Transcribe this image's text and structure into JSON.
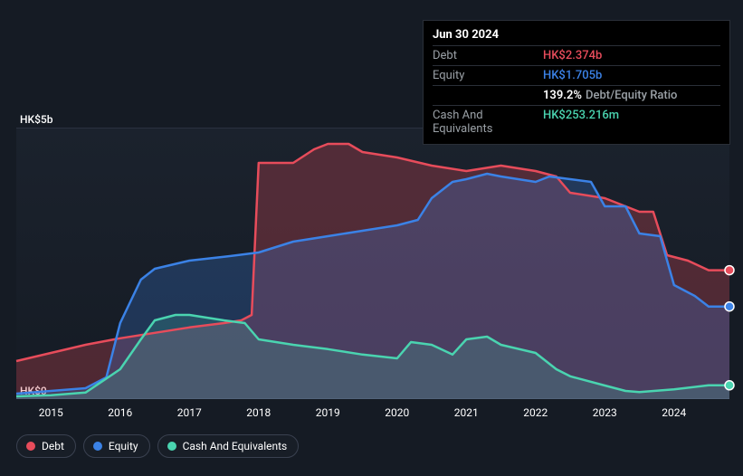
{
  "chart": {
    "type": "area-line",
    "background_color": "#151b24",
    "plot_bg_top": "rgba(33,41,54,0.5)",
    "grid_color": "#2a3140",
    "font_family": "sans-serif",
    "x_axis": {
      "min": 2014.5,
      "max": 2024.8,
      "ticks": [
        "2015",
        "2016",
        "2017",
        "2018",
        "2019",
        "2020",
        "2021",
        "2022",
        "2023",
        "2024"
      ],
      "tick_fontsize": 12,
      "tick_color": "#ffffff"
    },
    "y_axis": {
      "min": 0,
      "max": 5,
      "ticks": [
        {
          "v": 0,
          "label": "HK$0"
        },
        {
          "v": 5,
          "label": "HK$5b"
        }
      ],
      "tick_fontsize": 12,
      "tick_color": "#ffffff"
    },
    "series": [
      {
        "name": "Debt",
        "color": "#e74c5b",
        "fill_opacity": 0.28,
        "line_width": 2.5,
        "data": [
          [
            2014.5,
            0.7
          ],
          [
            2015.0,
            0.85
          ],
          [
            2015.5,
            1.0
          ],
          [
            2016.0,
            1.12
          ],
          [
            2016.5,
            1.22
          ],
          [
            2017.0,
            1.32
          ],
          [
            2017.5,
            1.4
          ],
          [
            2017.75,
            1.45
          ],
          [
            2017.9,
            1.55
          ],
          [
            2018.0,
            4.35
          ],
          [
            2018.5,
            4.35
          ],
          [
            2018.8,
            4.6
          ],
          [
            2019.0,
            4.7
          ],
          [
            2019.3,
            4.7
          ],
          [
            2019.5,
            4.55
          ],
          [
            2020.0,
            4.45
          ],
          [
            2020.5,
            4.3
          ],
          [
            2021.0,
            4.2
          ],
          [
            2021.5,
            4.3
          ],
          [
            2022.0,
            4.2
          ],
          [
            2022.3,
            4.1
          ],
          [
            2022.5,
            3.8
          ],
          [
            2023.0,
            3.7
          ],
          [
            2023.5,
            3.45
          ],
          [
            2023.7,
            3.45
          ],
          [
            2023.9,
            2.65
          ],
          [
            2024.2,
            2.55
          ],
          [
            2024.5,
            2.374
          ],
          [
            2024.8,
            2.374
          ]
        ]
      },
      {
        "name": "Equity",
        "color": "#3b82e6",
        "fill_opacity": 0.25,
        "line_width": 2.5,
        "data": [
          [
            2014.5,
            0.1
          ],
          [
            2015.0,
            0.15
          ],
          [
            2015.5,
            0.2
          ],
          [
            2015.8,
            0.4
          ],
          [
            2016.0,
            1.4
          ],
          [
            2016.3,
            2.2
          ],
          [
            2016.5,
            2.4
          ],
          [
            2017.0,
            2.55
          ],
          [
            2017.5,
            2.62
          ],
          [
            2018.0,
            2.7
          ],
          [
            2018.5,
            2.9
          ],
          [
            2019.0,
            3.0
          ],
          [
            2019.5,
            3.1
          ],
          [
            2020.0,
            3.2
          ],
          [
            2020.3,
            3.3
          ],
          [
            2020.5,
            3.7
          ],
          [
            2020.8,
            4.0
          ],
          [
            2021.0,
            4.05
          ],
          [
            2021.3,
            4.15
          ],
          [
            2021.5,
            4.1
          ],
          [
            2022.0,
            4.0
          ],
          [
            2022.2,
            4.1
          ],
          [
            2022.5,
            4.05
          ],
          [
            2022.8,
            4.0
          ],
          [
            2023.0,
            3.55
          ],
          [
            2023.3,
            3.55
          ],
          [
            2023.5,
            3.05
          ],
          [
            2023.8,
            3.0
          ],
          [
            2024.0,
            2.1
          ],
          [
            2024.3,
            1.9
          ],
          [
            2024.5,
            1.705
          ],
          [
            2024.8,
            1.705
          ]
        ]
      },
      {
        "name": "Cash And Equivalents",
        "color": "#4ad4b0",
        "fill_opacity": 0.18,
        "line_width": 2.5,
        "data": [
          [
            2014.5,
            0.05
          ],
          [
            2015.0,
            0.07
          ],
          [
            2015.5,
            0.12
          ],
          [
            2016.0,
            0.55
          ],
          [
            2016.3,
            1.1
          ],
          [
            2016.5,
            1.45
          ],
          [
            2016.8,
            1.55
          ],
          [
            2017.0,
            1.55
          ],
          [
            2017.5,
            1.45
          ],
          [
            2017.8,
            1.4
          ],
          [
            2018.0,
            1.1
          ],
          [
            2018.5,
            1.0
          ],
          [
            2019.0,
            0.92
          ],
          [
            2019.5,
            0.82
          ],
          [
            2020.0,
            0.75
          ],
          [
            2020.2,
            1.05
          ],
          [
            2020.5,
            1.0
          ],
          [
            2020.8,
            0.82
          ],
          [
            2021.0,
            1.1
          ],
          [
            2021.3,
            1.15
          ],
          [
            2021.5,
            1.0
          ],
          [
            2022.0,
            0.85
          ],
          [
            2022.3,
            0.55
          ],
          [
            2022.5,
            0.42
          ],
          [
            2023.0,
            0.25
          ],
          [
            2023.3,
            0.15
          ],
          [
            2023.5,
            0.13
          ],
          [
            2024.0,
            0.18
          ],
          [
            2024.5,
            0.253
          ],
          [
            2024.8,
            0.253
          ]
        ]
      }
    ],
    "end_markers": true
  },
  "tooltip": {
    "date": "Jun 30 2024",
    "rows": [
      {
        "label": "Debt",
        "value": "HK$2.374b",
        "color": "#e74c5b"
      },
      {
        "label": "Equity",
        "value": "HK$1.705b",
        "color": "#3b82e6"
      },
      {
        "label": "",
        "ratio_value": "139.2%",
        "ratio_text": "Debt/Equity Ratio"
      },
      {
        "label": "Cash And Equivalents",
        "value": "HK$253.216m",
        "color": "#4ad4b0"
      }
    ]
  },
  "legend": [
    {
      "label": "Debt",
      "color": "#e74c5b"
    },
    {
      "label": "Equity",
      "color": "#3b82e6"
    },
    {
      "label": "Cash And Equivalents",
      "color": "#4ad4b0"
    }
  ]
}
